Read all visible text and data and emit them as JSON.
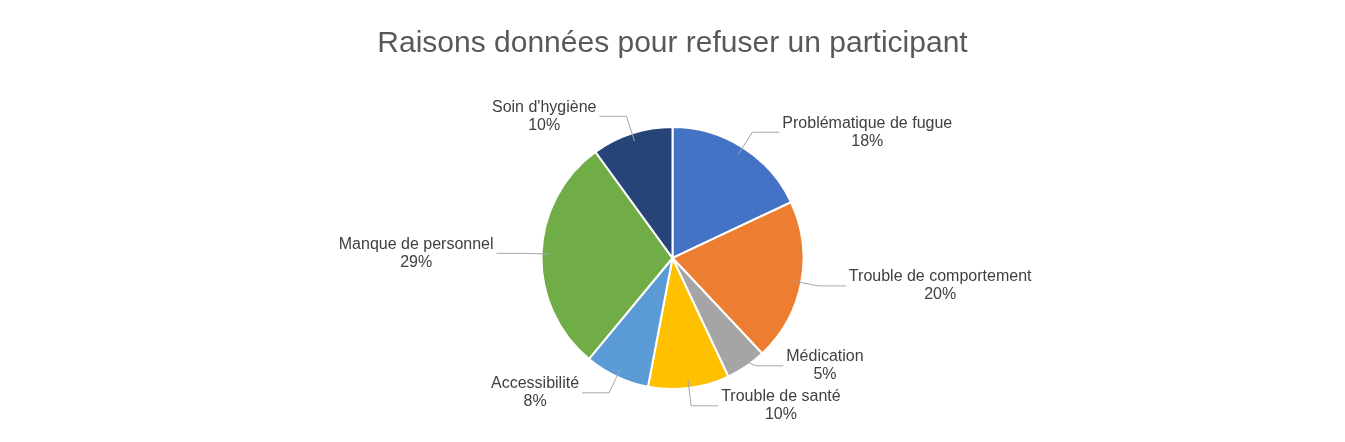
{
  "chart_data": {
    "type": "pie",
    "title": "Raisons données pour refuser un participant",
    "categories": [
      "Problématique de fugue",
      "Trouble de comportement",
      "Médication",
      "Trouble de santé",
      "Accessibilité",
      "Manque de personnel",
      "Soin d'hygiène"
    ],
    "values": [
      18,
      20,
      5,
      10,
      8,
      29,
      10
    ],
    "colors": [
      "#4472c4",
      "#ed7d31",
      "#a5a5a5",
      "#ffc000",
      "#5b9bd5",
      "#70ad47",
      "#264478"
    ],
    "value_labels": [
      "18%",
      "20%",
      "5%",
      "10%",
      "8%",
      "29%",
      "10%"
    ],
    "legend": false
  }
}
